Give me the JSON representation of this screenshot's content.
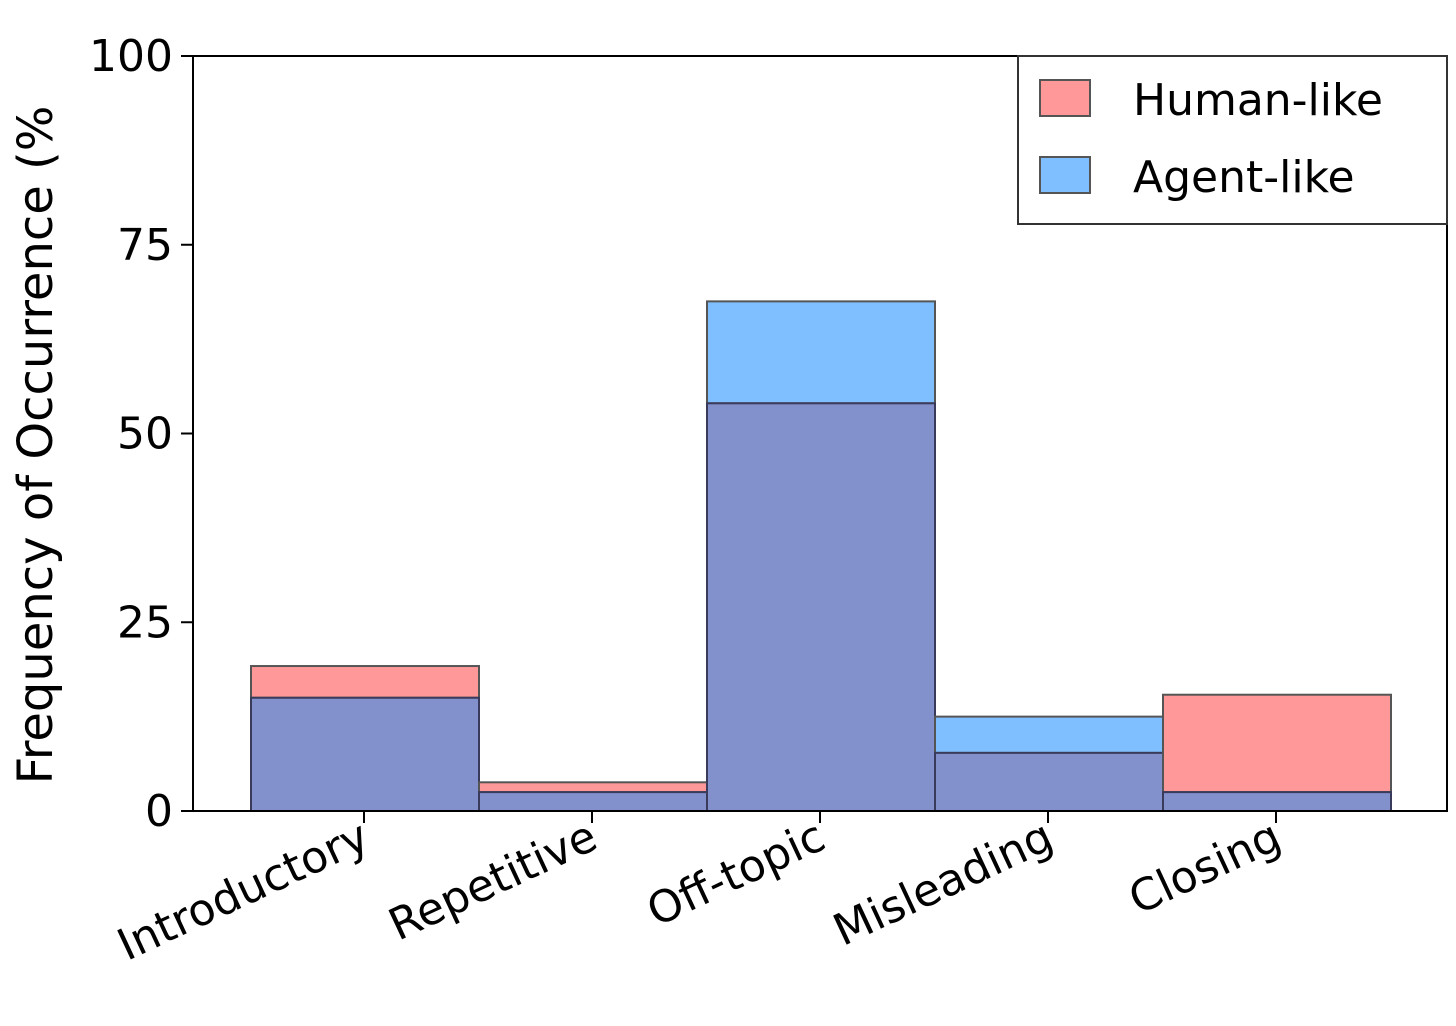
{
  "chart_data": {
    "type": "bar",
    "title": "",
    "xlabel": "",
    "ylabel": "Frequency of Occurrence (%",
    "ylim": [
      0,
      100
    ],
    "yticks": [
      0,
      25,
      50,
      75,
      100
    ],
    "categories": [
      "Introductory",
      "Repetitive",
      "Off-topic",
      "Misleading",
      "Closing"
    ],
    "series": [
      {
        "name": "Human-like",
        "color": "#ff9999",
        "values": [
          19.2,
          3.8,
          54.0,
          7.7,
          15.4
        ]
      },
      {
        "name": "Agent-like",
        "color": "#80bfff",
        "values": [
          15.0,
          2.5,
          67.5,
          12.5,
          2.5
        ]
      }
    ],
    "overlap_color": "#8290cc",
    "legend": {
      "position": "top-right"
    },
    "grid": false
  }
}
